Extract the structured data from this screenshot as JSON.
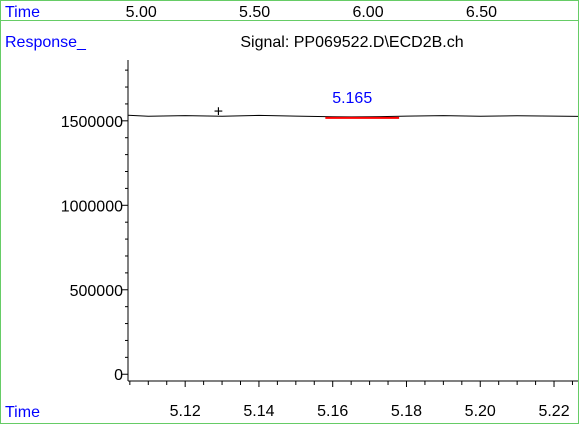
{
  "chart_data": {
    "type": "line",
    "top_axis": {
      "label": "Time",
      "ticks": [
        "5.00",
        "5.50",
        "6.00",
        "6.50"
      ],
      "tick_values": [
        5.0,
        5.5,
        6.0,
        6.5
      ],
      "range": [
        4.62,
        6.93
      ]
    },
    "y_axis_label": "Response_",
    "title": "Signal: PP069522.D\\ECD2B.ch",
    "xlabel": "Time",
    "x_ticks": [
      "5.12",
      "5.14",
      "5.16",
      "5.18",
      "5.20",
      "5.22"
    ],
    "x_tick_values": [
      5.12,
      5.14,
      5.16,
      5.18,
      5.2,
      5.22
    ],
    "xlim": [
      5.1045,
      5.2265
    ],
    "y_ticks": [
      "0",
      "500000",
      "1000000",
      "1500000"
    ],
    "y_tick_values": [
      0,
      500000,
      1000000,
      1500000
    ],
    "ylim": [
      -40000,
      1860000
    ],
    "series": [
      {
        "color": "#000000",
        "x": [
          5.1045,
          5.11,
          5.12,
          5.13,
          5.14,
          5.15,
          5.16,
          5.165,
          5.17,
          5.18,
          5.19,
          5.2,
          5.21,
          5.22,
          5.2265
        ],
        "y": [
          1533000,
          1527000,
          1531000,
          1527000,
          1532000,
          1528000,
          1524000,
          1523000,
          1524000,
          1528000,
          1531000,
          1527000,
          1530000,
          1528000,
          1526000
        ]
      }
    ],
    "peak": {
      "label": "5.165",
      "label_color": "#0000ff",
      "baseline_color": "#ff0000",
      "x_start": 5.158,
      "x_end": 5.178,
      "y": 1523000
    },
    "marker": {
      "symbol": "+",
      "x": 5.129,
      "y": 1560000
    }
  },
  "colors": {
    "label_blue": "#0000ff",
    "frame_green": "#66cc66",
    "axis": "#000000"
  }
}
